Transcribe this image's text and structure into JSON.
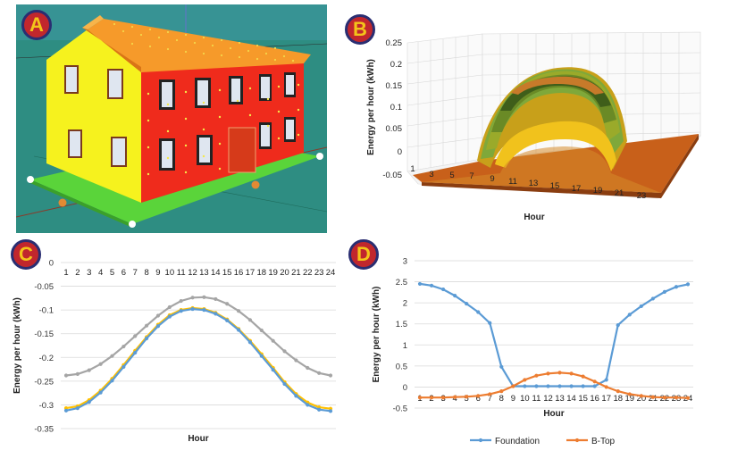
{
  "panels": {
    "a": {
      "label": "A"
    },
    "b": {
      "label": "B"
    },
    "c": {
      "label": "C"
    },
    "d": {
      "label": "D"
    }
  },
  "colors": {
    "badge_fill": "#c1272d",
    "badge_border": "#2a2e72",
    "badge_text": "#f3c51a",
    "foundation": "#5b9bd5",
    "btop": "#ed7d31",
    "gray_series": "#a5a5a5",
    "yellow_series": "#ffc000"
  },
  "chart_data": [
    {
      "panel": "B",
      "type": "surface",
      "ylabel": "Energy per hour (kWh)",
      "xlabel": "Hour",
      "yticks": [
        "0.25",
        "0.2",
        "0.15",
        "0.1",
        "0.05",
        "0",
        "-0.05"
      ],
      "xticks": [
        "1",
        "3",
        "5",
        "7",
        "9",
        "11",
        "13",
        "15",
        "17",
        "19",
        "21",
        "23",
        "25"
      ],
      "ylim": [
        -0.05,
        0.25
      ]
    },
    {
      "panel": "C",
      "type": "line",
      "xlabel": "Hour",
      "ylabel": "Energy per hour (kWh)",
      "ylim": [
        -0.35,
        0
      ],
      "yticks": [
        "0",
        "-0.05",
        "-0.1",
        "-0.15",
        "-0.2",
        "-0.25",
        "-0.3",
        "-0.35"
      ],
      "x": [
        "1",
        "2",
        "3",
        "4",
        "5",
        "6",
        "7",
        "8",
        "9",
        "10",
        "11",
        "12",
        "13",
        "14",
        "15",
        "16",
        "17",
        "18",
        "19",
        "20",
        "21",
        "22",
        "23",
        "24"
      ],
      "series": [
        {
          "name": "gray",
          "color": "#a5a5a5",
          "values": [
            -0.238,
            -0.235,
            -0.227,
            -0.214,
            -0.197,
            -0.177,
            -0.155,
            -0.133,
            -0.112,
            -0.094,
            -0.081,
            -0.074,
            -0.073,
            -0.077,
            -0.087,
            -0.102,
            -0.121,
            -0.143,
            -0.165,
            -0.187,
            -0.206,
            -0.222,
            -0.233,
            -0.238
          ]
        },
        {
          "name": "yellow",
          "color": "#ffc000",
          "values": [
            -0.307,
            -0.303,
            -0.29,
            -0.27,
            -0.245,
            -0.216,
            -0.186,
            -0.157,
            -0.131,
            -0.111,
            -0.1,
            -0.096,
            -0.098,
            -0.106,
            -0.12,
            -0.14,
            -0.165,
            -0.193,
            -0.222,
            -0.252,
            -0.277,
            -0.295,
            -0.305,
            -0.308
          ]
        },
        {
          "name": "blue",
          "color": "#5b9bd5",
          "values": [
            -0.312,
            -0.307,
            -0.294,
            -0.274,
            -0.249,
            -0.22,
            -0.19,
            -0.16,
            -0.134,
            -0.114,
            -0.102,
            -0.098,
            -0.1,
            -0.108,
            -0.122,
            -0.142,
            -0.168,
            -0.197,
            -0.226,
            -0.256,
            -0.281,
            -0.3,
            -0.31,
            -0.313
          ]
        }
      ]
    },
    {
      "panel": "D",
      "type": "line",
      "xlabel": "Hour",
      "ylabel": "Energy per hour (kWh)",
      "ylim": [
        -0.5,
        3
      ],
      "yticks": [
        "3",
        "2.5",
        "2",
        "1.5",
        "1",
        "0.5",
        "0",
        "-0.5"
      ],
      "x": [
        "1",
        "2",
        "3",
        "4",
        "5",
        "6",
        "7",
        "8",
        "9",
        "10",
        "11",
        "12",
        "13",
        "14",
        "15",
        "16",
        "17",
        "18",
        "19",
        "20",
        "21",
        "22",
        "23",
        "24"
      ],
      "series": [
        {
          "name": "Foundation",
          "color": "#5b9bd5",
          "values": [
            2.45,
            2.41,
            2.32,
            2.17,
            1.98,
            1.78,
            1.52,
            0.48,
            0.02,
            0.02,
            0.02,
            0.02,
            0.02,
            0.02,
            0.02,
            0.02,
            0.17,
            1.47,
            1.72,
            1.92,
            2.1,
            2.26,
            2.38,
            2.44
          ]
        },
        {
          "name": "B-Top",
          "color": "#ed7d31",
          "values": [
            -0.25,
            -0.25,
            -0.25,
            -0.24,
            -0.23,
            -0.21,
            -0.17,
            -0.1,
            0.02,
            0.17,
            0.27,
            0.32,
            0.34,
            0.32,
            0.25,
            0.13,
            0.0,
            -0.1,
            -0.17,
            -0.21,
            -0.24,
            -0.25,
            -0.25,
            -0.26
          ]
        }
      ],
      "legend": [
        "Foundation",
        "B-Top"
      ],
      "legend_position": "bottom"
    }
  ]
}
